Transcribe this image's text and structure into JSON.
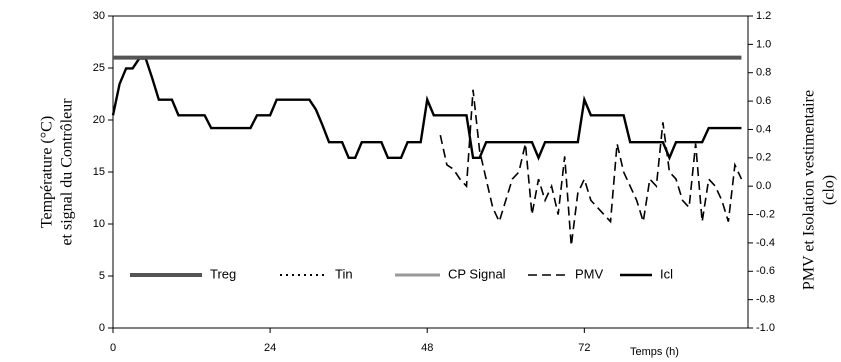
{
  "chart_data": {
    "type": "line",
    "x_label": "Temps (h)",
    "y_label": [
      "Température (°C)",
      "et signal du Contrôleur"
    ],
    "y2_label": [
      "PMV et Isolation vestimentaire",
      "(clo)"
    ],
    "x": [
      0,
      1,
      2,
      3,
      4,
      5,
      6,
      7,
      8,
      9,
      10,
      11,
      12,
      13,
      14,
      15,
      16,
      17,
      18,
      19,
      20,
      21,
      22,
      23,
      24,
      25,
      26,
      27,
      28,
      29,
      30,
      31,
      32,
      33,
      34,
      35,
      36,
      37,
      38,
      39,
      40,
      41,
      42,
      43,
      44,
      45,
      46,
      47,
      48,
      49,
      50,
      51,
      52,
      53,
      54,
      55,
      56,
      57,
      58,
      59,
      60,
      61,
      62,
      63,
      64,
      65,
      66,
      67,
      68,
      69,
      70,
      71,
      72,
      73,
      74,
      75,
      76,
      77,
      78,
      79,
      80,
      81,
      82,
      83,
      84,
      85,
      86,
      87,
      88,
      89,
      90,
      91,
      92,
      93,
      94,
      95,
      96
    ],
    "xlim": [
      0,
      97
    ],
    "xticks": [
      0,
      24,
      48,
      72
    ],
    "ylim": [
      0,
      30
    ],
    "yticks": [
      0,
      5,
      10,
      15,
      20,
      25,
      30
    ],
    "y2lim": [
      -1,
      1.2
    ],
    "y2ticks": [
      {
        "value": -1,
        "label": "-1.0"
      },
      -0.8,
      -0.6,
      -0.4,
      -0.2,
      {
        "value": 0,
        "label": "0.0"
      },
      0.2,
      0.4,
      0.6,
      0.8,
      {
        "value": 1,
        "label": "1.0"
      },
      1.2
    ],
    "legend": "bottom",
    "series": [
      {
        "name": "Treg",
        "color": "#555555",
        "style": "solid",
        "width": 4,
        "values": [
          26,
          26,
          26,
          26,
          26,
          26,
          26,
          26,
          26,
          26,
          26,
          26,
          26,
          26,
          26,
          26,
          26,
          26,
          26,
          26,
          26,
          26,
          26,
          26,
          26,
          26,
          26,
          26,
          26,
          26,
          26,
          26,
          26,
          26,
          26,
          26,
          26,
          26,
          26,
          26,
          26,
          26,
          26,
          26,
          26,
          26,
          26,
          26,
          26,
          26,
          26,
          26,
          26,
          26,
          26,
          26,
          26,
          26,
          26,
          26,
          26,
          26,
          26,
          26,
          26,
          26,
          26,
          26,
          26,
          26,
          26,
          26,
          26,
          26,
          26,
          26,
          26,
          26,
          26,
          26,
          26,
          26,
          26,
          26,
          26,
          26,
          26,
          26,
          26,
          26,
          26,
          26,
          26,
          26,
          26,
          26,
          26
        ]
      },
      {
        "name": "Tin",
        "color": "#000000",
        "style": "dotted",
        "width": 2,
        "values": [
          null,
          null,
          null,
          null,
          null,
          null,
          null,
          null,
          null,
          null,
          null,
          null,
          null,
          null,
          null,
          null,
          null,
          null,
          null,
          null,
          null,
          null,
          null,
          null,
          null,
          null,
          null,
          null,
          null,
          null,
          null,
          null,
          null,
          null,
          null,
          null,
          null,
          null,
          null,
          null,
          null,
          null,
          null,
          null,
          null,
          null,
          null,
          null,
          null,
          null,
          null,
          null,
          null,
          null,
          null,
          null,
          null,
          null,
          null,
          null,
          null,
          null,
          null,
          null,
          null,
          null,
          null,
          null,
          null,
          null,
          null,
          null,
          null,
          null,
          null,
          null,
          null,
          null,
          null,
          null,
          null,
          null,
          null,
          null,
          null,
          null,
          null,
          null,
          null,
          null,
          null,
          null,
          null,
          null,
          null,
          null,
          null
        ]
      },
      {
        "name": "CP Signal",
        "color": "#999999",
        "style": "solid",
        "width": 3,
        "values": [
          null,
          null,
          null,
          null,
          null,
          null,
          null,
          null,
          null,
          null,
          null,
          null,
          null,
          null,
          null,
          null,
          null,
          null,
          null,
          null,
          null,
          null,
          null,
          null,
          null,
          null,
          null,
          null,
          null,
          null,
          null,
          null,
          null,
          null,
          null,
          null,
          null,
          null,
          null,
          null,
          null,
          null,
          null,
          null,
          null,
          null,
          null,
          null,
          null,
          null,
          null,
          null,
          null,
          null,
          null,
          null,
          null,
          null,
          null,
          null,
          null,
          null,
          null,
          null,
          null,
          null,
          null,
          null,
          null,
          null,
          null,
          null,
          null,
          null,
          null,
          null,
          null,
          null,
          null,
          null,
          null,
          null,
          null,
          null,
          null,
          null,
          null,
          null,
          null,
          null,
          null,
          null,
          null,
          null,
          null,
          null,
          null
        ]
      },
      {
        "name": "PMV",
        "color": "#000000",
        "style": "dashed",
        "width": 1.6,
        "axis": "y2",
        "values": [
          null,
          null,
          null,
          null,
          null,
          null,
          null,
          null,
          null,
          null,
          null,
          null,
          null,
          null,
          null,
          null,
          null,
          null,
          null,
          null,
          null,
          null,
          null,
          null,
          null,
          null,
          null,
          null,
          null,
          null,
          null,
          null,
          null,
          null,
          null,
          null,
          null,
          null,
          null,
          null,
          null,
          null,
          null,
          null,
          null,
          null,
          null,
          null,
          null,
          null,
          0.36,
          0.15,
          0.12,
          0.05,
          0.0,
          0.68,
          0.25,
          0.05,
          -0.15,
          -0.25,
          -0.1,
          0.05,
          0.1,
          0.3,
          -0.2,
          0.05,
          -0.1,
          0.0,
          -0.2,
          0.21,
          -0.42,
          -0.05,
          0.05,
          -0.1,
          -0.15,
          -0.2,
          -0.25,
          0.3,
          0.1,
          0.0,
          -0.1,
          -0.25,
          0.05,
          0.0,
          0.45,
          0.1,
          0.05,
          -0.1,
          -0.15,
          0.3,
          -0.25,
          0.05,
          0.0,
          -0.1,
          -0.25,
          0.15,
          0.05
        ]
      },
      {
        "name": "Icl",
        "color": "#000000",
        "style": "solid",
        "width": 2.4,
        "axis": "y2",
        "values": [
          0.5,
          0.72,
          0.83,
          0.83,
          0.9,
          0.9,
          0.76,
          0.61,
          0.61,
          0.61,
          0.5,
          0.5,
          0.5,
          0.5,
          0.5,
          0.41,
          0.41,
          0.41,
          0.41,
          0.41,
          0.41,
          0.41,
          0.5,
          0.5,
          0.5,
          0.61,
          0.61,
          0.61,
          0.61,
          0.61,
          0.61,
          0.54,
          0.43,
          0.31,
          0.31,
          0.31,
          0.2,
          0.2,
          0.31,
          0.31,
          0.31,
          0.31,
          0.2,
          0.2,
          0.2,
          0.31,
          0.31,
          0.31,
          0.61,
          0.5,
          0.5,
          0.5,
          0.5,
          0.5,
          0.5,
          0.2,
          0.2,
          0.31,
          0.31,
          0.31,
          0.31,
          0.31,
          0.31,
          0.31,
          0.31,
          0.2,
          0.31,
          0.31,
          0.31,
          0.31,
          0.31,
          0.31,
          0.61,
          0.5,
          0.5,
          0.5,
          0.5,
          0.5,
          0.5,
          0.31,
          0.31,
          0.31,
          0.31,
          0.31,
          0.31,
          0.2,
          0.31,
          0.31,
          0.31,
          0.31,
          0.31,
          0.41,
          0.41,
          0.41,
          0.41,
          0.41,
          0.41
        ]
      }
    ]
  }
}
